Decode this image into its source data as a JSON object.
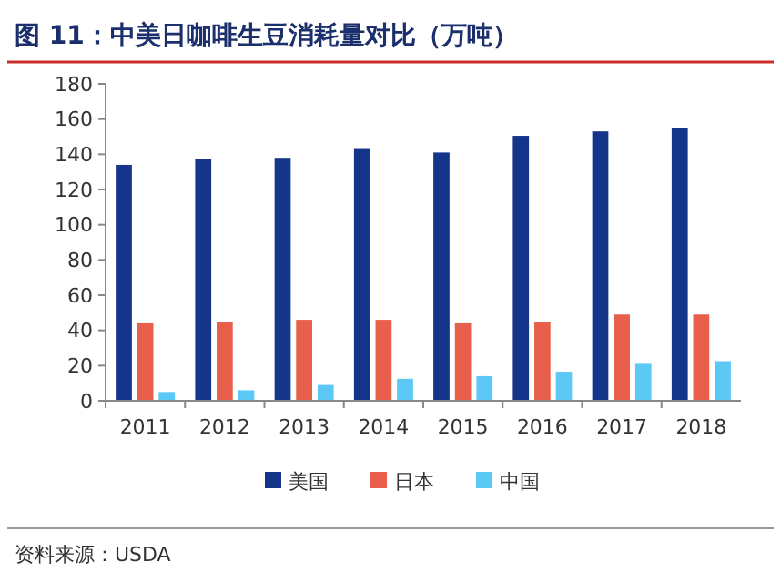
{
  "chart_data": {
    "type": "bar",
    "title": "图 11：中美日咖啡生豆消耗量对比（万吨）",
    "categories": [
      "2011",
      "2012",
      "2013",
      "2014",
      "2015",
      "2016",
      "2017",
      "2018"
    ],
    "series": [
      {
        "name": "美国",
        "color": "#15358a",
        "values": [
          134,
          137.5,
          138,
          143,
          141,
          150.5,
          153,
          155
        ]
      },
      {
        "name": "日本",
        "color": "#e8604c",
        "values": [
          44,
          45,
          46,
          46,
          44,
          45,
          49,
          49
        ]
      },
      {
        "name": "中国",
        "color": "#5bc8f5",
        "values": [
          5,
          6,
          9,
          12.5,
          14,
          16.5,
          21,
          22.5
        ]
      }
    ],
    "ylim": [
      0,
      180
    ],
    "yticks": [
      0,
      20,
      40,
      60,
      80,
      100,
      120,
      140,
      160,
      180
    ],
    "grid": false,
    "legend": "bottom",
    "annotations": [
      "资料来源：USDA"
    ]
  }
}
